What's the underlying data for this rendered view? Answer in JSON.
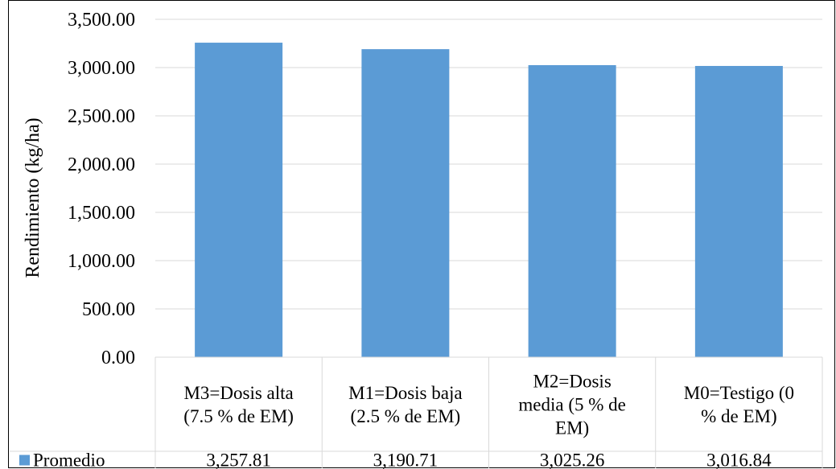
{
  "chart_data": {
    "type": "bar",
    "categories": [
      [
        "M3=Dosis alta",
        "(7.5 % de EM)"
      ],
      [
        "M1=Dosis baja",
        "(2.5 % de EM)"
      ],
      [
        "M2=Dosis",
        "media (5 % de",
        "EM)"
      ],
      [
        "M0=Testigo (0",
        "% de EM)"
      ]
    ],
    "series": [
      {
        "name": "Promedio",
        "values": [
          3257.81,
          3190.71,
          3025.26,
          3016.84
        ]
      }
    ],
    "data_labels": [
      "3,257.81",
      "3,190.71",
      "3,025.26",
      "3,016.84"
    ],
    "title": "",
    "xlabel": "",
    "ylabel": "Rendimiento (kg/ha)",
    "ylim": [
      0,
      3500
    ],
    "yticks": [
      "0.00",
      "500.00",
      "1,000.00",
      "1,500.00",
      "2,000.00",
      "2,500.00",
      "3,000.00",
      "3,500.00"
    ],
    "grid": true,
    "legend": "data-table",
    "colors": {
      "bar": "#5B9BD5",
      "grid": "#D9D9D9"
    }
  }
}
